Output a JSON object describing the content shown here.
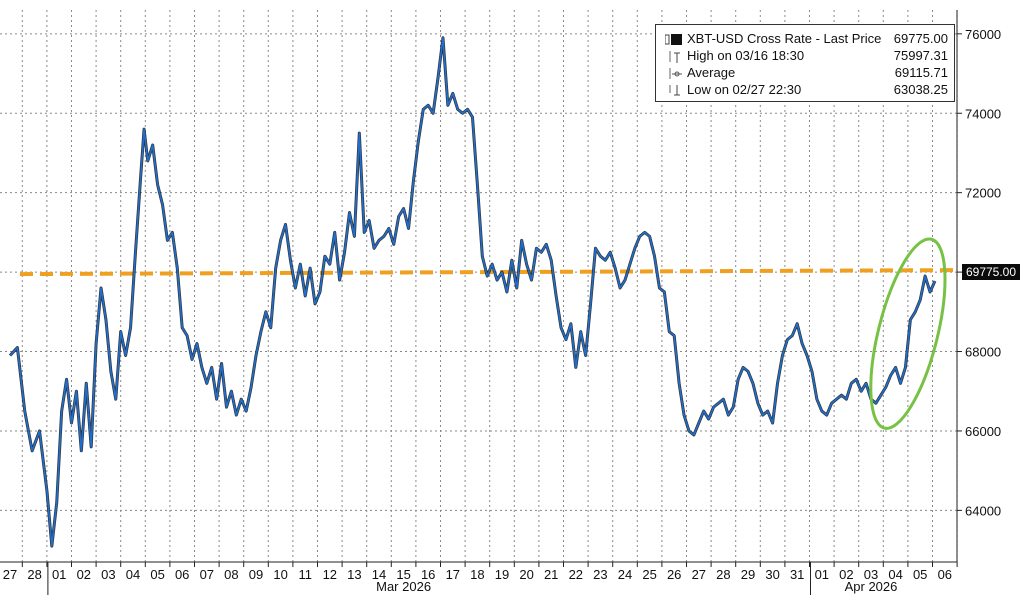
{
  "chart_data": {
    "type": "line",
    "y_ticks": [
      64000,
      66000,
      68000,
      70000,
      72000,
      74000,
      76000
    ],
    "ylim": [
      62700,
      76600
    ],
    "x_day_labels": [
      "27",
      "28",
      "01",
      "02",
      "03",
      "04",
      "05",
      "06",
      "07",
      "08",
      "09",
      "10",
      "11",
      "12",
      "13",
      "14",
      "15",
      "16",
      "17",
      "18",
      "19",
      "20",
      "21",
      "22",
      "23",
      "24",
      "25",
      "26",
      "27",
      "28",
      "29",
      "30",
      "31",
      "01",
      "02",
      "03",
      "04",
      "05",
      "06"
    ],
    "month_labels": [
      {
        "label": "Mar 2026",
        "day_index": 16
      },
      {
        "label": "Apr 2026",
        "day_index": 35
      }
    ],
    "grid": true,
    "series": [
      {
        "name": "XBT-USD Cross Rate - Last Price",
        "color": "#1e6fd0",
        "points": [
          [
            0.0,
            67900
          ],
          [
            0.3,
            68100
          ],
          [
            0.6,
            66500
          ],
          [
            0.9,
            65500
          ],
          [
            1.2,
            66000
          ],
          [
            1.5,
            64500
          ],
          [
            1.7,
            63100
          ],
          [
            1.9,
            64200
          ],
          [
            2.1,
            66500
          ],
          [
            2.3,
            67300
          ],
          [
            2.5,
            66200
          ],
          [
            2.7,
            67000
          ],
          [
            2.9,
            65500
          ],
          [
            3.1,
            67200
          ],
          [
            3.3,
            65600
          ],
          [
            3.5,
            68200
          ],
          [
            3.7,
            69600
          ],
          [
            3.9,
            68800
          ],
          [
            4.1,
            67500
          ],
          [
            4.3,
            66800
          ],
          [
            4.5,
            68500
          ],
          [
            4.7,
            67900
          ],
          [
            4.9,
            68600
          ],
          [
            5.1,
            70500
          ],
          [
            5.3,
            72300
          ],
          [
            5.45,
            73600
          ],
          [
            5.6,
            72800
          ],
          [
            5.8,
            73200
          ],
          [
            6.0,
            72200
          ],
          [
            6.2,
            71700
          ],
          [
            6.4,
            70800
          ],
          [
            6.6,
            71000
          ],
          [
            6.8,
            70100
          ],
          [
            7.0,
            68600
          ],
          [
            7.2,
            68400
          ],
          [
            7.4,
            67800
          ],
          [
            7.6,
            68200
          ],
          [
            7.8,
            67600
          ],
          [
            8.0,
            67200
          ],
          [
            8.2,
            67600
          ],
          [
            8.4,
            66800
          ],
          [
            8.6,
            67700
          ],
          [
            8.8,
            66600
          ],
          [
            9.0,
            67000
          ],
          [
            9.2,
            66400
          ],
          [
            9.4,
            66800
          ],
          [
            9.6,
            66500
          ],
          [
            9.8,
            67100
          ],
          [
            10.0,
            67900
          ],
          [
            10.2,
            68500
          ],
          [
            10.4,
            69000
          ],
          [
            10.6,
            68600
          ],
          [
            10.8,
            70100
          ],
          [
            11.0,
            70800
          ],
          [
            11.2,
            71200
          ],
          [
            11.4,
            70300
          ],
          [
            11.6,
            69600
          ],
          [
            11.8,
            70200
          ],
          [
            12.0,
            69400
          ],
          [
            12.2,
            70100
          ],
          [
            12.4,
            69200
          ],
          [
            12.6,
            69500
          ],
          [
            12.8,
            70400
          ],
          [
            13.0,
            70200
          ],
          [
            13.2,
            71000
          ],
          [
            13.4,
            69800
          ],
          [
            13.6,
            70500
          ],
          [
            13.8,
            71500
          ],
          [
            14.0,
            70900
          ],
          [
            14.2,
            73500
          ],
          [
            14.4,
            71000
          ],
          [
            14.6,
            71300
          ],
          [
            14.8,
            70600
          ],
          [
            15.0,
            70800
          ],
          [
            15.2,
            70900
          ],
          [
            15.4,
            71100
          ],
          [
            15.6,
            70700
          ],
          [
            15.8,
            71400
          ],
          [
            16.0,
            71600
          ],
          [
            16.2,
            71100
          ],
          [
            16.4,
            72300
          ],
          [
            16.6,
            73300
          ],
          [
            16.8,
            74100
          ],
          [
            17.0,
            74200
          ],
          [
            17.2,
            74000
          ],
          [
            17.4,
            74900
          ],
          [
            17.6,
            75900
          ],
          [
            17.8,
            74200
          ],
          [
            18.0,
            74500
          ],
          [
            18.2,
            74100
          ],
          [
            18.4,
            74000
          ],
          [
            18.6,
            74100
          ],
          [
            18.8,
            73900
          ],
          [
            19.0,
            72200
          ],
          [
            19.2,
            70400
          ],
          [
            19.4,
            69900
          ],
          [
            19.6,
            70200
          ],
          [
            19.8,
            69800
          ],
          [
            20.0,
            70000
          ],
          [
            20.2,
            69500
          ],
          [
            20.4,
            70300
          ],
          [
            20.6,
            69600
          ],
          [
            20.8,
            70800
          ],
          [
            21.0,
            70200
          ],
          [
            21.2,
            69800
          ],
          [
            21.4,
            70600
          ],
          [
            21.6,
            70500
          ],
          [
            21.8,
            70700
          ],
          [
            22.0,
            70300
          ],
          [
            22.2,
            69400
          ],
          [
            22.4,
            68600
          ],
          [
            22.6,
            68300
          ],
          [
            22.8,
            68700
          ],
          [
            23.0,
            67600
          ],
          [
            23.2,
            68500
          ],
          [
            23.4,
            67900
          ],
          [
            23.6,
            69200
          ],
          [
            23.8,
            70600
          ],
          [
            24.0,
            70400
          ],
          [
            24.2,
            70300
          ],
          [
            24.4,
            70500
          ],
          [
            24.6,
            70100
          ],
          [
            24.8,
            69600
          ],
          [
            25.0,
            69800
          ],
          [
            25.2,
            70200
          ],
          [
            25.4,
            70600
          ],
          [
            25.6,
            70900
          ],
          [
            25.8,
            71000
          ],
          [
            26.0,
            70900
          ],
          [
            26.2,
            70400
          ],
          [
            26.4,
            69600
          ],
          [
            26.6,
            69500
          ],
          [
            26.8,
            68500
          ],
          [
            27.0,
            68400
          ],
          [
            27.2,
            67200
          ],
          [
            27.4,
            66400
          ],
          [
            27.6,
            66000
          ],
          [
            27.8,
            65900
          ],
          [
            28.0,
            66200
          ],
          [
            28.2,
            66500
          ],
          [
            28.4,
            66300
          ],
          [
            28.6,
            66600
          ],
          [
            28.8,
            66700
          ],
          [
            29.0,
            66800
          ],
          [
            29.2,
            66400
          ],
          [
            29.4,
            66600
          ],
          [
            29.6,
            67300
          ],
          [
            29.8,
            67600
          ],
          [
            30.0,
            67500
          ],
          [
            30.2,
            67200
          ],
          [
            30.4,
            66700
          ],
          [
            30.6,
            66400
          ],
          [
            30.8,
            66500
          ],
          [
            31.0,
            66200
          ],
          [
            31.2,
            67200
          ],
          [
            31.4,
            67900
          ],
          [
            31.6,
            68300
          ],
          [
            31.8,
            68400
          ],
          [
            32.0,
            68700
          ],
          [
            32.2,
            68200
          ],
          [
            32.4,
            67900
          ],
          [
            32.6,
            67500
          ],
          [
            32.8,
            66800
          ],
          [
            33.0,
            66500
          ],
          [
            33.2,
            66400
          ],
          [
            33.4,
            66700
          ],
          [
            33.6,
            66800
          ],
          [
            33.8,
            66900
          ],
          [
            34.0,
            66800
          ],
          [
            34.2,
            67200
          ],
          [
            34.4,
            67300
          ],
          [
            34.6,
            67000
          ],
          [
            34.8,
            67200
          ],
          [
            35.0,
            66800
          ],
          [
            35.2,
            66700
          ],
          [
            35.4,
            66900
          ],
          [
            35.6,
            67100
          ],
          [
            35.8,
            67400
          ],
          [
            36.0,
            67600
          ],
          [
            36.2,
            67200
          ],
          [
            36.4,
            67600
          ],
          [
            36.6,
            68800
          ],
          [
            36.8,
            69000
          ],
          [
            37.0,
            69300
          ],
          [
            37.2,
            69900
          ],
          [
            37.4,
            69500
          ],
          [
            37.6,
            69775
          ]
        ]
      }
    ],
    "reference_line": {
      "value": 70000,
      "color": "#f0a020",
      "style": "dashed"
    },
    "highlight_ellipse": {
      "color": "#77c244",
      "x_range": [
        35.3,
        37.7
      ],
      "y_range": [
        66000,
        70900
      ]
    },
    "last_value_label": "69775.00",
    "legend": {
      "placement": "top-right",
      "rows": [
        {
          "name": "XBT-USD Cross Rate - Last Price",
          "value": "69775.00"
        },
        {
          "name": "High on 03/16 18:30",
          "value": "75997.31"
        },
        {
          "name": "Average",
          "value": "69115.71"
        },
        {
          "name": "Low on 02/27 22:30",
          "value": "63038.25"
        }
      ]
    }
  }
}
